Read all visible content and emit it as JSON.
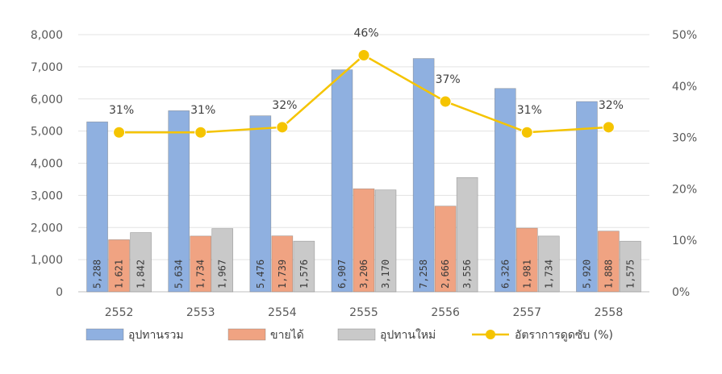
{
  "chart_data": {
    "type": "bar",
    "categories": [
      "2552",
      "2553",
      "2554",
      "2555",
      "2556",
      "2557",
      "2558"
    ],
    "series": [
      {
        "name": "อุปทานรวม",
        "kind": "bar",
        "color": "#8fb0e0",
        "values": [
          5288,
          5634,
          5476,
          6907,
          7258,
          6326,
          5920
        ],
        "labels": [
          "5,288",
          "5,634",
          "5,476",
          "6,907",
          "7,258",
          "6,326",
          "5,920"
        ]
      },
      {
        "name": "ขายได้",
        "kind": "bar",
        "color": "#f0a382",
        "values": [
          1621,
          1734,
          1739,
          3206,
          2666,
          1981,
          1888
        ],
        "labels": [
          "1,621",
          "1,734",
          "1,739",
          "3,206",
          "2,666",
          "1,981",
          "1,888"
        ]
      },
      {
        "name": "อุปทานใหม่",
        "kind": "bar",
        "color": "#c9c9c9",
        "values": [
          1842,
          1967,
          1576,
          3170,
          3556,
          1734,
          1575
        ],
        "labels": [
          "1,842",
          "1,967",
          "1,576",
          "3,170",
          "3,556",
          "1,734",
          "1,575"
        ]
      },
      {
        "name": "อัตราการดูดซับ (%)",
        "kind": "line",
        "color": "#f5c400",
        "values": [
          31,
          31,
          32,
          46,
          37,
          31,
          32
        ],
        "labels": [
          "31%",
          "31%",
          "32%",
          "46%",
          "37%",
          "31%",
          "32%"
        ]
      }
    ],
    "y_left": {
      "ylim": [
        0,
        8000
      ],
      "ticks": [
        "0",
        "1,000",
        "2,000",
        "3,000",
        "4,000",
        "5,000",
        "6,000",
        "7,000",
        "8,000"
      ]
    },
    "y_right": {
      "ylim": [
        0,
        50
      ],
      "ticks": [
        "0%",
        "10%",
        "20%",
        "30%",
        "40%",
        "50%"
      ]
    },
    "grid": true,
    "legend_position": "bottom"
  }
}
